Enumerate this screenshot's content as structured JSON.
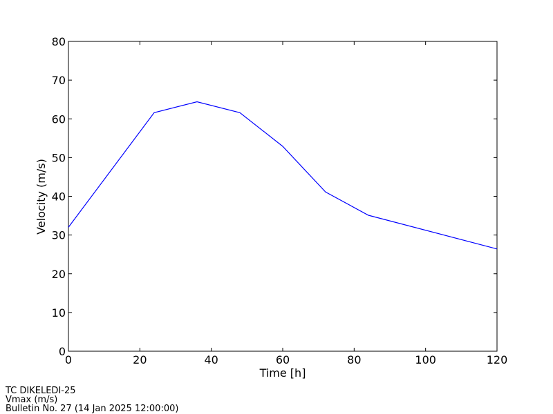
{
  "chart_data": {
    "type": "line",
    "x_label": "Time [h]",
    "y_label": "Velocity (m/s)",
    "x": [
      0,
      24,
      36,
      48,
      60,
      72,
      84,
      120
    ],
    "series": [
      {
        "name": "Vmax",
        "color": "#0000ff",
        "values": [
          32,
          61.6,
          64.4,
          61.6,
          52.9,
          41.1,
          35.1,
          26.4
        ]
      }
    ],
    "xlim": [
      0,
      120
    ],
    "xticks": [
      0,
      20,
      40,
      60,
      80,
      100,
      120
    ],
    "ylim": [
      0,
      80
    ],
    "yticks": [
      0,
      10,
      20,
      30,
      40,
      50,
      60,
      70,
      80
    ],
    "grid": false,
    "footer": [
      "TC DIKELEDI-25",
      "Vmax (m/s)",
      "Bulletin No. 27 (14 Jan 2025  12:00:00)"
    ]
  }
}
